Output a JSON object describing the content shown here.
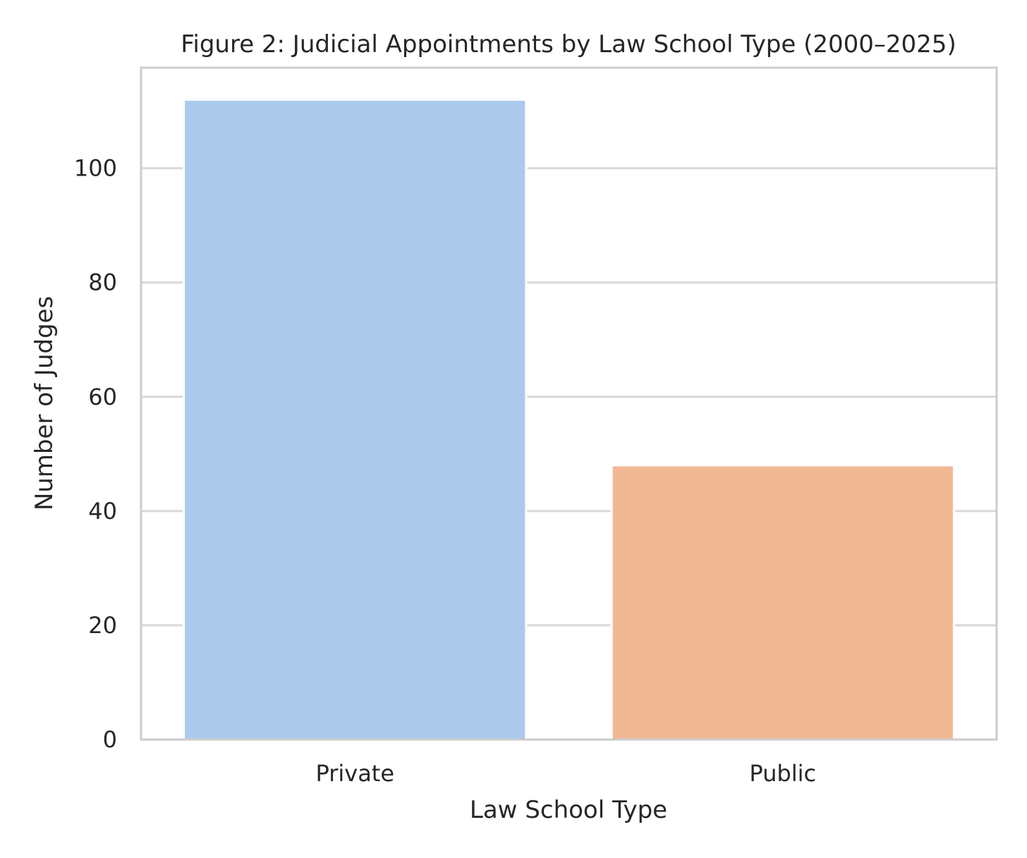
{
  "chart_data": {
    "type": "bar",
    "title": "Figure 2: Judicial Appointments by Law School Type (2000–2025)",
    "xlabel": "Law School Type",
    "ylabel": "Number of Judges",
    "categories": [
      "Private",
      "Public"
    ],
    "values": [
      112,
      48
    ],
    "colors": [
      "#abc9eb",
      "#f0b892"
    ],
    "ylim": [
      0,
      117.6
    ],
    "yticks": [
      0,
      20,
      40,
      60,
      80,
      100
    ],
    "grid": true,
    "grid_color": "#d9d9d9",
    "frame_color": "#cccccc"
  }
}
